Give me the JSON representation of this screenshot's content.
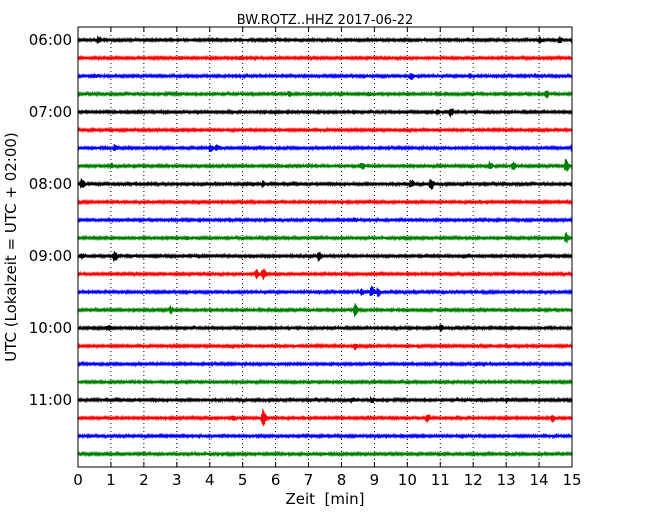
{
  "chart_data": {
    "type": "line",
    "title": "BW.ROTZ..HHZ 2017-06-22",
    "xlabel": "Zeit  [min]",
    "ylabel": "UTC (Lokalzeit = UTC + 02:00)",
    "xlim": [
      0,
      15
    ],
    "x_ticks": [
      "0",
      "1",
      "2",
      "3",
      "4",
      "5",
      "6",
      "7",
      "8",
      "9",
      "10",
      "11",
      "12",
      "13",
      "14",
      "15"
    ],
    "y_ticks": [
      "06:00",
      "07:00",
      "08:00",
      "09:00",
      "10:00",
      "11:00"
    ],
    "grid": "vertical dotted",
    "trace_interval_minutes": 15,
    "color_cycle": [
      "#000000",
      "#ff0000",
      "#0000ff",
      "#008000"
    ],
    "series": [
      {
        "start": "06:00",
        "events": [
          {
            "t": 0.6,
            "amp": 1.0
          },
          {
            "t": 14.0,
            "amp": 0.8
          },
          {
            "t": 14.6,
            "amp": 0.9
          }
        ]
      },
      {
        "start": "06:15",
        "events": [
          {
            "t": 3.1,
            "amp": 0.6
          },
          {
            "t": 4.9,
            "amp": 0.6
          }
        ]
      },
      {
        "start": "06:30",
        "events": [
          {
            "t": 0.5,
            "amp": 0.6
          },
          {
            "t": 10.1,
            "amp": 1.2
          },
          {
            "t": 11.9,
            "amp": 0.7
          }
        ]
      },
      {
        "start": "06:45",
        "events": [
          {
            "t": 6.4,
            "amp": 0.8
          },
          {
            "t": 8.8,
            "amp": 0.7
          },
          {
            "t": 14.2,
            "amp": 1.5
          }
        ]
      },
      {
        "start": "07:00",
        "events": [
          {
            "t": 10.9,
            "amp": 0.8
          },
          {
            "t": 11.3,
            "amp": 1.6
          }
        ]
      },
      {
        "start": "07:15",
        "events": []
      },
      {
        "start": "07:30",
        "events": [
          {
            "t": 1.1,
            "amp": 0.9
          },
          {
            "t": 4.0,
            "amp": 1.0
          },
          {
            "t": 4.2,
            "amp": 0.8
          },
          {
            "t": 15.0,
            "amp": 1.6
          }
        ]
      },
      {
        "start": "07:45",
        "events": [
          {
            "t": 1.0,
            "amp": 0.8
          },
          {
            "t": 8.6,
            "amp": 1.2
          },
          {
            "t": 12.5,
            "amp": 1.4
          },
          {
            "t": 13.2,
            "amp": 1.2
          },
          {
            "t": 14.8,
            "amp": 2.2
          }
        ]
      },
      {
        "start": "08:00",
        "events": [
          {
            "t": 0.1,
            "amp": 1.5
          },
          {
            "t": 5.6,
            "amp": 0.8
          },
          {
            "t": 10.1,
            "amp": 1.4
          },
          {
            "t": 10.7,
            "amp": 1.9
          }
        ]
      },
      {
        "start": "08:15",
        "events": []
      },
      {
        "start": "08:30",
        "events": [
          {
            "t": 8.4,
            "amp": 0.6
          }
        ]
      },
      {
        "start": "08:45",
        "events": [
          {
            "t": 3.3,
            "amp": 0.6
          },
          {
            "t": 8.0,
            "amp": 0.7
          },
          {
            "t": 14.8,
            "amp": 1.6
          }
        ]
      },
      {
        "start": "09:00",
        "events": [
          {
            "t": 0.1,
            "amp": 0.8
          },
          {
            "t": 1.1,
            "amp": 1.8
          },
          {
            "t": 7.3,
            "amp": 1.5
          }
        ]
      },
      {
        "start": "09:15",
        "events": [
          {
            "t": 5.4,
            "amp": 1.4
          },
          {
            "t": 5.6,
            "amp": 2.0
          }
        ]
      },
      {
        "start": "09:30",
        "events": [
          {
            "t": 8.6,
            "amp": 0.9
          },
          {
            "t": 8.9,
            "amp": 1.7
          },
          {
            "t": 9.1,
            "amp": 1.2
          }
        ]
      },
      {
        "start": "09:45",
        "events": [
          {
            "t": 2.8,
            "amp": 1.2
          },
          {
            "t": 8.4,
            "amp": 1.9
          }
        ]
      },
      {
        "start": "10:00",
        "events": [
          {
            "t": 0.9,
            "amp": 1.0
          },
          {
            "t": 11.0,
            "amp": 1.0
          }
        ]
      },
      {
        "start": "10:15",
        "events": [
          {
            "t": 8.4,
            "amp": 0.9
          }
        ]
      },
      {
        "start": "10:30",
        "events": []
      },
      {
        "start": "10:45",
        "events": []
      },
      {
        "start": "11:00",
        "events": [
          {
            "t": 8.3,
            "amp": 0.8
          },
          {
            "t": 8.9,
            "amp": 0.9
          },
          {
            "t": 13.0,
            "amp": 0.8
          }
        ]
      },
      {
        "start": "11:15",
        "events": [
          {
            "t": 4.7,
            "amp": 0.9
          },
          {
            "t": 5.6,
            "amp": 2.7
          },
          {
            "t": 10.6,
            "amp": 1.2
          },
          {
            "t": 14.4,
            "amp": 1.0
          }
        ]
      },
      {
        "start": "11:30",
        "events": []
      },
      {
        "start": "11:45",
        "events": []
      }
    ]
  }
}
